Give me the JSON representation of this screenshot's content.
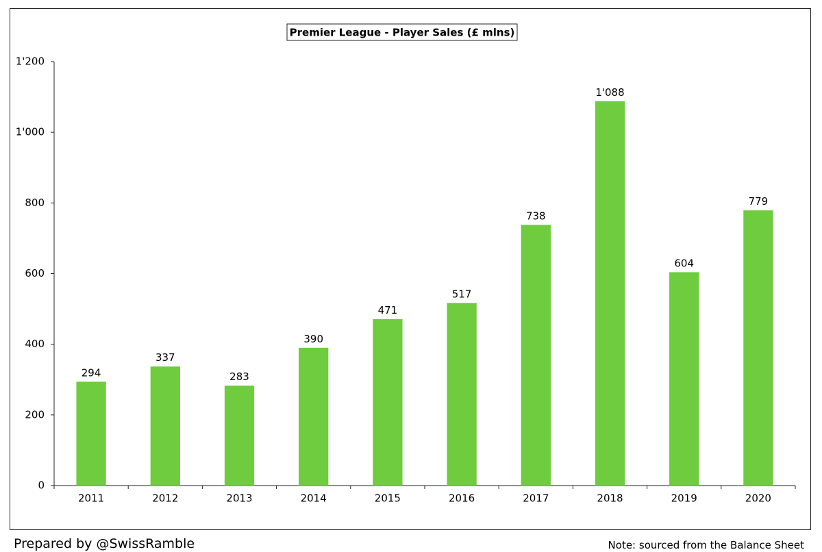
{
  "footer": {
    "prepared_by": "Prepared by @SwissRamble",
    "note": "Note: sourced from the Balance Sheet"
  },
  "colors": {
    "bar": "#6ecc3e",
    "axis": "#222222",
    "frame": "#222222"
  },
  "chart_data": {
    "type": "bar",
    "title": "Premier League - Player Sales (£ mlns)",
    "xlabel": "",
    "ylabel": "",
    "categories": [
      "2011",
      "2012",
      "2013",
      "2014",
      "2015",
      "2016",
      "2017",
      "2018",
      "2019",
      "2020"
    ],
    "values": [
      294,
      337,
      283,
      390,
      471,
      517,
      738,
      1088,
      604,
      779
    ],
    "data_labels": [
      "294",
      "337",
      "283",
      "390",
      "471",
      "517",
      "738",
      "1'088",
      "604",
      "779"
    ],
    "ylim": [
      0,
      1200
    ],
    "yticks": [
      0,
      200,
      400,
      600,
      800,
      1000,
      1200
    ],
    "ytick_labels": [
      "0",
      "200",
      "400",
      "600",
      "800",
      "1'000",
      "1'200"
    ],
    "grid": false,
    "legend": "none"
  }
}
